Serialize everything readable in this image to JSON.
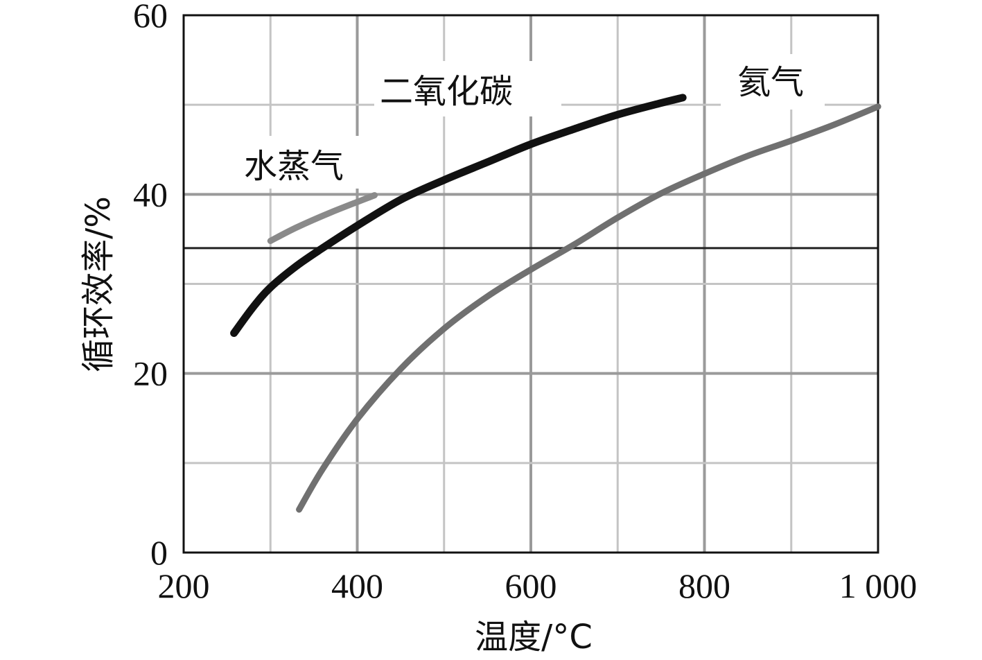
{
  "chart_data": {
    "type": "line",
    "xlabel": "温度/°C",
    "ylabel": "循环效率/%",
    "xlim": [
      200,
      1000
    ],
    "ylim": [
      0,
      60
    ],
    "x_ticks": [
      "200",
      "400",
      "600",
      "800",
      "1 000"
    ],
    "y_ticks": [
      "0",
      "20",
      "40",
      "60"
    ],
    "grid": true,
    "minor_grid": true,
    "reference_line_y": 34,
    "series": [
      {
        "name": "水蒸气",
        "color": "#8a8a8a",
        "points": [
          [
            300,
            34.8
          ],
          [
            330,
            36.3
          ],
          [
            370,
            38.0
          ],
          [
            420,
            39.9
          ]
        ]
      },
      {
        "name": "二氧化碳",
        "color": "#111111",
        "points": [
          [
            258,
            24.5
          ],
          [
            280,
            27.4
          ],
          [
            300,
            29.6
          ],
          [
            330,
            32.0
          ],
          [
            360,
            34.0
          ],
          [
            400,
            36.5
          ],
          [
            450,
            39.4
          ],
          [
            500,
            41.6
          ],
          [
            550,
            43.6
          ],
          [
            600,
            45.6
          ],
          [
            650,
            47.3
          ],
          [
            700,
            48.9
          ],
          [
            750,
            50.2
          ],
          [
            775,
            50.8
          ]
        ]
      },
      {
        "name": "氦气",
        "color": "#707070",
        "points": [
          [
            333,
            4.8
          ],
          [
            360,
            9.3
          ],
          [
            400,
            14.9
          ],
          [
            450,
            20.5
          ],
          [
            500,
            25.0
          ],
          [
            550,
            28.6
          ],
          [
            600,
            31.6
          ],
          [
            650,
            34.4
          ],
          [
            700,
            37.4
          ],
          [
            750,
            40.1
          ],
          [
            800,
            42.3
          ],
          [
            850,
            44.3
          ],
          [
            900,
            46.0
          ],
          [
            950,
            47.8
          ],
          [
            1000,
            49.8
          ]
        ]
      }
    ]
  }
}
